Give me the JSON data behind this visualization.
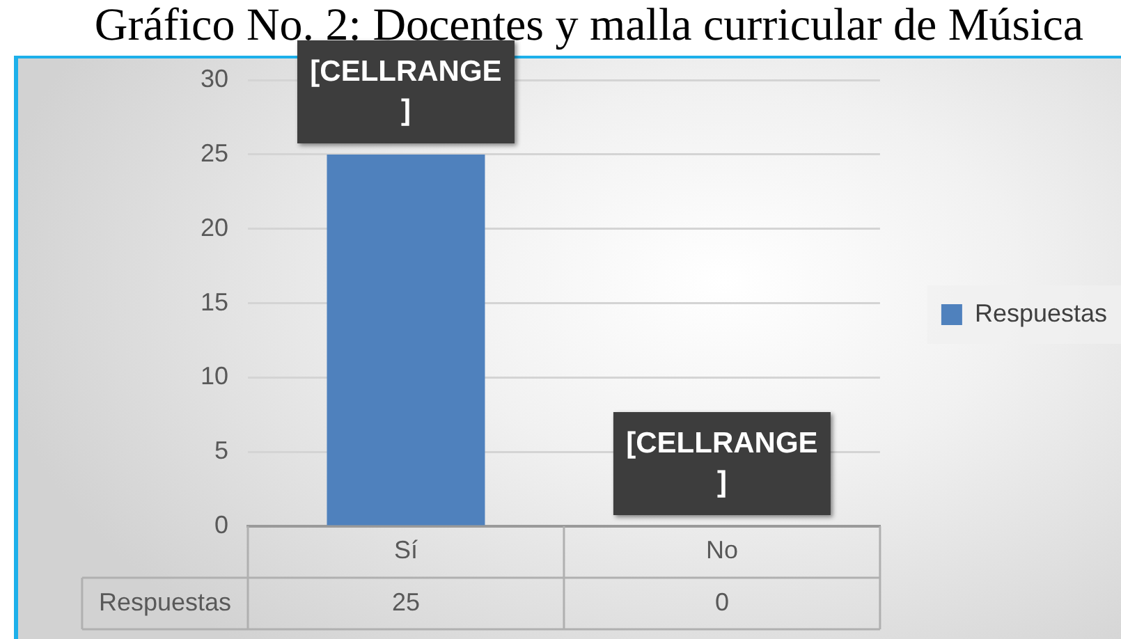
{
  "chart_data": {
    "type": "bar",
    "title": "Gráfico No. 2: Docentes y malla curricular de Música",
    "categories": [
      "Sí",
      "No"
    ],
    "series": [
      {
        "name": "Respuestas",
        "color": "#4f81bd",
        "values": [
          25,
          0
        ]
      }
    ],
    "ylim": [
      0,
      30
    ],
    "yticks": [
      0,
      5,
      10,
      15,
      20,
      25,
      30
    ],
    "grid": "y",
    "legend": "right",
    "data_labels": true,
    "annotations": [
      {
        "text": "[CELLRANGE]",
        "x": "Sí",
        "y": 25
      },
      {
        "text": "[CELLRANGE]",
        "x": "No",
        "y": 0
      }
    ]
  }
}
